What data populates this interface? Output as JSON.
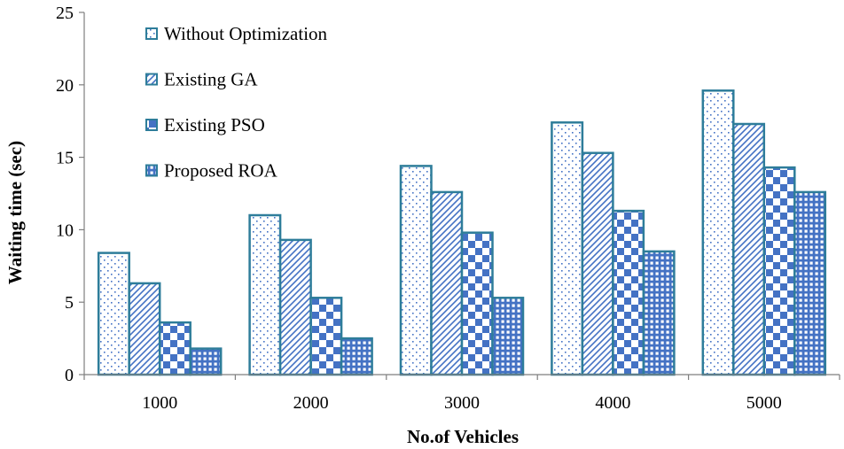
{
  "chart_data": {
    "type": "bar",
    "title": "",
    "xlabel": "No.of Vehicles",
    "ylabel": "Waiting time (sec)",
    "categories": [
      "1000",
      "2000",
      "3000",
      "4000",
      "5000"
    ],
    "ylim": [
      0,
      25
    ],
    "yticks": [
      0,
      5,
      10,
      15,
      20,
      25
    ],
    "grid": false,
    "legend_position": "top-left",
    "series": [
      {
        "name": "Without Optimization",
        "pattern": "dots",
        "values": [
          8.4,
          11.0,
          14.4,
          17.4,
          19.6
        ]
      },
      {
        "name": "Existing GA",
        "pattern": "diagonal",
        "values": [
          6.3,
          9.3,
          12.6,
          15.3,
          17.3
        ]
      },
      {
        "name": "Existing PSO",
        "pattern": "checker",
        "values": [
          3.6,
          5.3,
          9.8,
          11.3,
          14.3
        ]
      },
      {
        "name": "Proposed ROA",
        "pattern": "grid",
        "values": [
          1.8,
          2.5,
          5.3,
          8.5,
          12.6
        ]
      }
    ],
    "colors": {
      "bar_edge": "#2E7D9A",
      "pattern_fill": "#4472C4",
      "axis": "#7F7F7F"
    }
  }
}
